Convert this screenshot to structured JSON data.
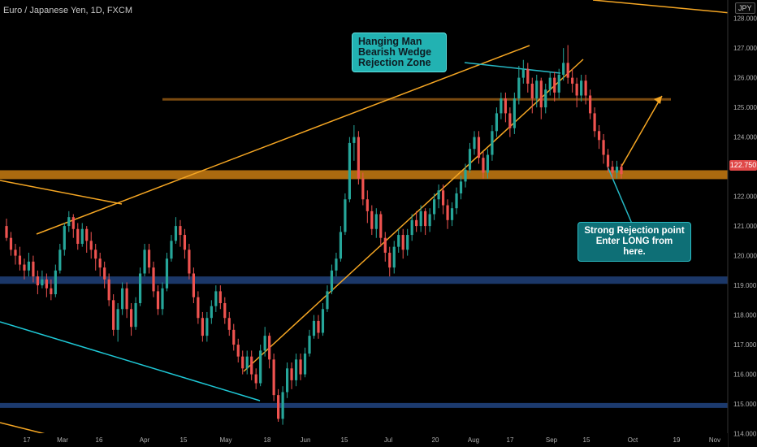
{
  "header": {
    "symbol_title": "Euro / Japanese Yen, 1D, FXCM"
  },
  "currency_badge": "JPY",
  "current_price_label": "122.750",
  "annotations": {
    "hanging_man": [
      "Hanging Man",
      "Bearish Wedge",
      "Rejection Zone"
    ],
    "strong_rejection": [
      "Strong Rejection point",
      "Enter LONG from here."
    ]
  },
  "colors": {
    "background": "#000000",
    "candle_up": "#26a69a",
    "candle_down": "#ef5350",
    "trendline": "#f5a623",
    "resistance_zone": "#c97d12",
    "support_zone": "#1c3a6e",
    "channel_line": "#1ec8d6",
    "price_tag": "#e04848"
  },
  "chart_data": {
    "type": "candlestick",
    "title": "Euro / Japanese Yen, 1D, FXCM",
    "ylim": [
      113.55,
      128.62
    ],
    "y_ticks": [
      114,
      115,
      116,
      117,
      118,
      119,
      120,
      121,
      122,
      123,
      124,
      125,
      126,
      127,
      128
    ],
    "x_ticks": [
      "17",
      "Mar",
      "16",
      "Apr",
      "15",
      "May",
      "18",
      "Jun",
      "15",
      "Jul",
      "20",
      "Aug",
      "17",
      "Sep",
      "15",
      "Oct",
      "19",
      "Nov"
    ],
    "last_price": 122.75,
    "candles": [
      [
        121.0,
        120.6,
        121.25,
        120.5
      ],
      [
        120.6,
        120.2,
        120.8,
        120.0
      ],
      [
        120.2,
        120.0,
        120.4,
        119.7
      ],
      [
        120.0,
        119.7,
        120.3,
        119.5
      ],
      [
        119.7,
        119.5,
        119.9,
        119.2
      ],
      [
        119.5,
        119.8,
        120.1,
        119.3
      ],
      [
        119.8,
        119.3,
        120.0,
        119.1
      ],
      [
        119.3,
        119.0,
        119.5,
        118.7
      ],
      [
        119.0,
        119.2,
        119.5,
        118.9
      ],
      [
        119.2,
        118.9,
        119.4,
        118.6
      ],
      [
        118.9,
        118.7,
        119.2,
        118.5
      ],
      [
        118.7,
        119.5,
        119.7,
        118.6
      ],
      [
        119.5,
        120.2,
        120.4,
        119.4
      ],
      [
        120.2,
        121.0,
        121.1,
        120.0
      ],
      [
        121.0,
        121.3,
        121.5,
        120.8
      ],
      [
        121.3,
        120.9,
        121.4,
        120.6
      ],
      [
        120.9,
        120.4,
        121.1,
        120.2
      ],
      [
        120.4,
        120.9,
        121.1,
        120.3
      ],
      [
        120.9,
        120.5,
        121.0,
        120.1
      ],
      [
        120.5,
        120.2,
        120.8,
        119.9
      ],
      [
        120.2,
        119.9,
        120.4,
        119.5
      ],
      [
        119.9,
        119.6,
        120.1,
        119.3
      ],
      [
        119.6,
        119.2,
        119.8,
        118.9
      ],
      [
        119.2,
        118.5,
        119.4,
        118.3
      ],
      [
        118.5,
        117.5,
        118.7,
        117.3
      ],
      [
        117.5,
        118.2,
        118.4,
        117.1
      ],
      [
        118.2,
        118.9,
        119.1,
        118.0
      ],
      [
        118.9,
        118.2,
        119.1,
        117.9
      ],
      [
        118.2,
        117.6,
        118.4,
        117.3
      ],
      [
        117.6,
        118.4,
        118.6,
        117.5
      ],
      [
        118.4,
        119.4,
        119.6,
        118.3
      ],
      [
        119.4,
        120.2,
        120.4,
        119.3
      ],
      [
        120.2,
        119.6,
        120.4,
        119.4
      ],
      [
        119.6,
        118.8,
        119.8,
        118.6
      ],
      [
        118.8,
        118.2,
        119.0,
        118.0
      ],
      [
        118.2,
        118.9,
        119.1,
        118.0
      ],
      [
        118.9,
        119.9,
        120.1,
        118.8
      ],
      [
        119.9,
        120.5,
        120.7,
        119.8
      ],
      [
        120.5,
        121.0,
        121.3,
        120.4
      ],
      [
        121.0,
        120.7,
        121.2,
        120.3
      ],
      [
        120.7,
        120.2,
        120.9,
        119.9
      ],
      [
        120.2,
        119.4,
        120.4,
        119.2
      ],
      [
        119.4,
        118.6,
        119.6,
        118.4
      ],
      [
        118.6,
        117.9,
        118.8,
        117.7
      ],
      [
        117.9,
        117.3,
        118.1,
        117.1
      ],
      [
        117.3,
        117.9,
        118.1,
        117.1
      ],
      [
        117.9,
        118.3,
        118.5,
        117.7
      ],
      [
        118.3,
        118.8,
        119.0,
        118.1
      ],
      [
        118.8,
        118.4,
        119.0,
        118.2
      ],
      [
        118.4,
        117.9,
        118.6,
        117.7
      ],
      [
        117.9,
        117.5,
        118.1,
        117.3
      ],
      [
        117.5,
        117.0,
        117.7,
        116.8
      ],
      [
        117.0,
        116.6,
        117.2,
        116.4
      ],
      [
        116.6,
        116.2,
        116.8,
        116.0
      ],
      [
        116.2,
        116.6,
        116.8,
        116.0
      ],
      [
        116.6,
        116.0,
        116.8,
        115.8
      ],
      [
        116.0,
        115.7,
        116.2,
        115.5
      ],
      [
        115.7,
        116.8,
        117.0,
        115.6
      ],
      [
        116.8,
        117.3,
        117.6,
        116.6
      ],
      [
        117.3,
        116.5,
        117.4,
        116.2
      ],
      [
        116.5,
        115.3,
        116.7,
        115.1
      ],
      [
        115.3,
        114.5,
        115.5,
        114.4
      ],
      [
        114.5,
        115.4,
        115.6,
        114.3
      ],
      [
        115.4,
        116.2,
        116.4,
        115.2
      ],
      [
        116.2,
        115.8,
        116.4,
        115.5
      ],
      [
        115.8,
        116.5,
        116.7,
        115.6
      ],
      [
        116.5,
        116.0,
        116.7,
        115.8
      ],
      [
        116.0,
        116.7,
        116.9,
        115.9
      ],
      [
        116.7,
        117.3,
        117.5,
        116.6
      ],
      [
        117.3,
        117.8,
        118.0,
        117.2
      ],
      [
        117.8,
        117.4,
        118.0,
        117.2
      ],
      [
        117.4,
        118.2,
        118.4,
        117.3
      ],
      [
        118.2,
        118.8,
        119.0,
        118.1
      ],
      [
        118.8,
        119.5,
        119.7,
        118.7
      ],
      [
        119.5,
        119.9,
        120.1,
        119.3
      ],
      [
        119.9,
        120.8,
        121.0,
        119.8
      ],
      [
        120.8,
        121.9,
        122.1,
        120.7
      ],
      [
        121.9,
        123.8,
        124.0,
        121.8
      ],
      [
        123.8,
        124.0,
        124.4,
        123.2
      ],
      [
        124.0,
        122.6,
        124.2,
        122.4
      ],
      [
        122.6,
        121.9,
        122.8,
        121.7
      ],
      [
        121.9,
        121.5,
        122.2,
        121.1
      ],
      [
        121.5,
        120.9,
        121.7,
        120.7
      ],
      [
        120.9,
        121.4,
        121.6,
        120.6
      ],
      [
        121.4,
        120.6,
        121.5,
        120.3
      ],
      [
        120.6,
        120.1,
        120.8,
        119.8
      ],
      [
        120.1,
        119.6,
        120.3,
        119.3
      ],
      [
        119.6,
        120.3,
        120.5,
        119.4
      ],
      [
        120.3,
        120.7,
        120.9,
        120.1
      ],
      [
        120.7,
        120.2,
        120.9,
        119.9
      ],
      [
        120.2,
        120.7,
        120.9,
        120.0
      ],
      [
        120.7,
        121.2,
        121.4,
        120.5
      ],
      [
        121.2,
        121.0,
        121.5,
        120.8
      ],
      [
        121.0,
        121.5,
        121.7,
        120.8
      ],
      [
        121.5,
        121.0,
        121.6,
        120.7
      ],
      [
        121.0,
        121.4,
        121.6,
        120.8
      ],
      [
        121.4,
        121.9,
        122.1,
        121.2
      ],
      [
        121.9,
        122.2,
        122.4,
        121.6
      ],
      [
        122.2,
        121.7,
        122.4,
        121.4
      ],
      [
        121.7,
        121.2,
        121.9,
        120.9
      ],
      [
        121.2,
        121.6,
        121.8,
        121.0
      ],
      [
        121.6,
        122.1,
        122.3,
        121.4
      ],
      [
        122.1,
        122.5,
        122.7,
        121.9
      ],
      [
        122.5,
        122.9,
        123.1,
        122.3
      ],
      [
        122.9,
        123.6,
        123.8,
        122.8
      ],
      [
        123.6,
        124.0,
        124.2,
        123.4
      ],
      [
        124.0,
        123.3,
        124.2,
        123.1
      ],
      [
        123.3,
        122.8,
        123.5,
        122.6
      ],
      [
        122.8,
        123.4,
        123.6,
        122.6
      ],
      [
        123.4,
        124.2,
        124.4,
        123.2
      ],
      [
        124.2,
        124.8,
        125.0,
        124.0
      ],
      [
        124.8,
        125.3,
        125.5,
        124.6
      ],
      [
        125.3,
        124.8,
        125.5,
        124.5
      ],
      [
        124.8,
        124.3,
        125.0,
        124.0
      ],
      [
        124.3,
        125.3,
        125.5,
        124.1
      ],
      [
        125.3,
        126.0,
        126.4,
        125.1
      ],
      [
        126.0,
        126.3,
        126.6,
        125.8
      ],
      [
        126.3,
        125.8,
        126.5,
        125.5
      ],
      [
        125.8,
        125.3,
        126.0,
        124.8
      ],
      [
        125.3,
        125.9,
        126.1,
        125.0
      ],
      [
        125.9,
        125.0,
        126.0,
        124.6
      ],
      [
        125.0,
        125.6,
        125.8,
        124.8
      ],
      [
        125.6,
        126.0,
        126.2,
        125.4
      ],
      [
        126.0,
        125.5,
        126.2,
        125.2
      ],
      [
        125.5,
        126.1,
        126.3,
        125.3
      ],
      [
        126.1,
        126.5,
        127.0,
        125.9
      ],
      [
        126.5,
        126.0,
        127.1,
        125.8
      ],
      [
        126.0,
        125.8,
        126.3,
        125.5
      ],
      [
        125.8,
        125.4,
        126.0,
        125.0
      ],
      [
        125.4,
        125.9,
        126.1,
        125.2
      ],
      [
        125.9,
        125.4,
        126.1,
        125.1
      ],
      [
        125.4,
        124.8,
        125.6,
        124.6
      ],
      [
        124.8,
        124.2,
        125.0,
        124.0
      ],
      [
        124.2,
        123.9,
        124.4,
        123.6
      ],
      [
        123.9,
        123.4,
        124.1,
        123.1
      ],
      [
        123.4,
        123.0,
        123.6,
        122.8
      ],
      [
        123.0,
        122.8,
        123.2,
        122.6
      ],
      [
        122.8,
        123.0,
        123.2,
        122.6
      ],
      [
        123.0,
        122.75,
        123.1,
        122.6
      ]
    ],
    "support_zone_upper": [
      122.58,
      122.88
    ],
    "support_zone_lower": [
      119.05,
      119.3
    ],
    "horizontal_level": 125.27
  }
}
